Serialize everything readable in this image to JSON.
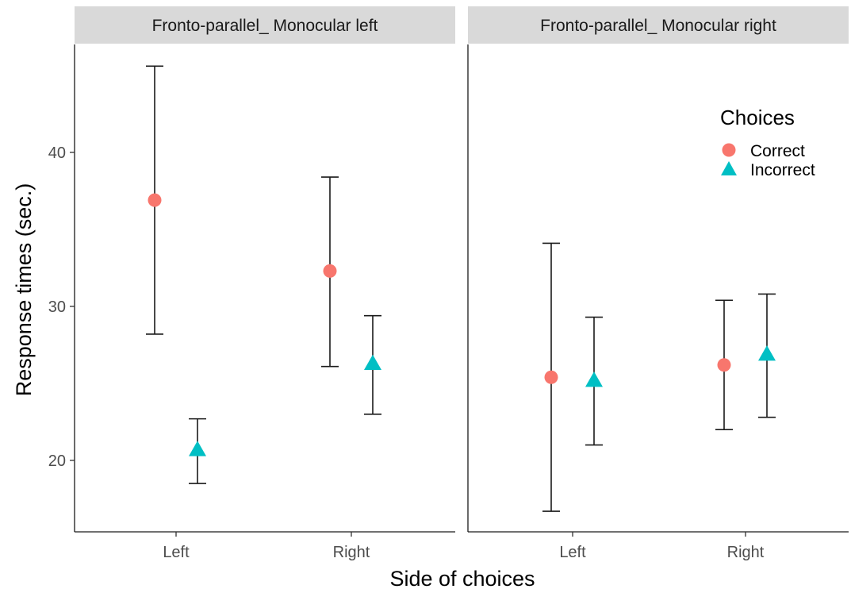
{
  "chart_data": {
    "type": "scatter",
    "subtype": "dot-with-error-bars",
    "facets": [
      {
        "label": "Fronto-parallel_ Monocular left",
        "points": [
          {
            "x": "Left",
            "series": "Correct",
            "y": 36.9,
            "ymin": 28.2,
            "ymax": 45.6
          },
          {
            "x": "Left",
            "series": "Incorrect",
            "y": 20.7,
            "ymin": 18.5,
            "ymax": 22.7
          },
          {
            "x": "Right",
            "series": "Correct",
            "y": 32.3,
            "ymin": 26.1,
            "ymax": 38.4
          },
          {
            "x": "Right",
            "series": "Incorrect",
            "y": 26.3,
            "ymin": 23.0,
            "ymax": 29.4
          }
        ]
      },
      {
        "label": "Fronto-parallel_ Monocular right",
        "points": [
          {
            "x": "Left",
            "series": "Correct",
            "y": 25.4,
            "ymin": 16.7,
            "ymax": 34.1
          },
          {
            "x": "Left",
            "series": "Incorrect",
            "y": 25.2,
            "ymin": 21.0,
            "ymax": 29.3
          },
          {
            "x": "Right",
            "series": "Correct",
            "y": 26.2,
            "ymin": 22.0,
            "ymax": 30.4
          },
          {
            "x": "Right",
            "series": "Incorrect",
            "y": 26.9,
            "ymin": 22.8,
            "ymax": 30.8
          }
        ]
      }
    ],
    "categories": [
      "Left",
      "Right"
    ],
    "series": [
      {
        "name": "Correct",
        "color": "#F8766D",
        "shape": "circle"
      },
      {
        "name": "Incorrect",
        "color": "#00BFC4",
        "shape": "triangle"
      }
    ],
    "xlabel": "Side of choices",
    "ylabel": "Response times (sec.)",
    "yticks": [
      20,
      30,
      40
    ],
    "ylim": [
      15.4,
      47.0
    ],
    "legend_title": "Choices",
    "legend_position": "top-right",
    "grid": false
  }
}
